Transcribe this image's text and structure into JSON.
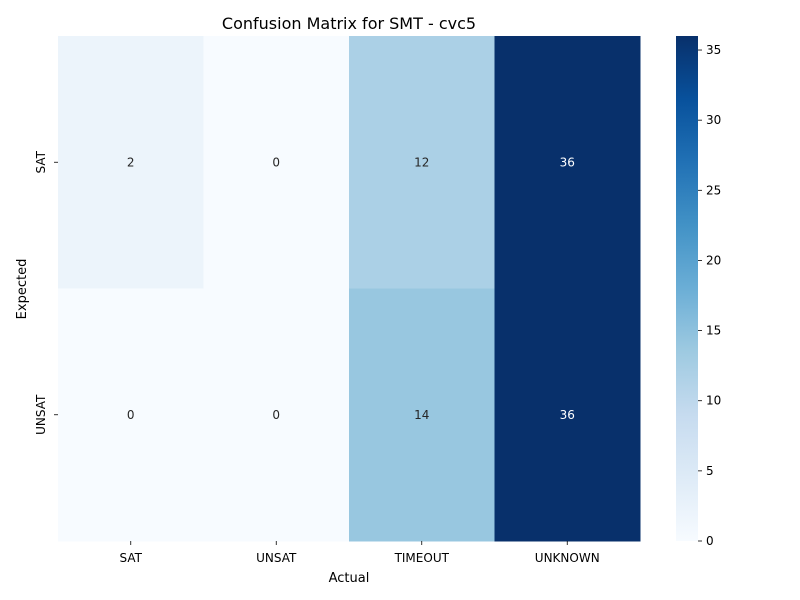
{
  "chart_data": {
    "type": "heatmap",
    "title": "Confusion Matrix for SMT - cvc5",
    "xlabel": "Actual",
    "ylabel": "Expected",
    "x_categories": [
      "SAT",
      "UNSAT",
      "TIMEOUT",
      "UNKNOWN"
    ],
    "y_categories": [
      "SAT",
      "UNSAT"
    ],
    "values": [
      [
        2,
        0,
        12,
        36
      ],
      [
        0,
        0,
        14,
        36
      ]
    ],
    "colorbar": {
      "min": 0,
      "max": 36,
      "ticks": [
        0,
        5,
        10,
        15,
        20,
        25,
        30,
        35
      ],
      "colormap": "Blues"
    }
  }
}
